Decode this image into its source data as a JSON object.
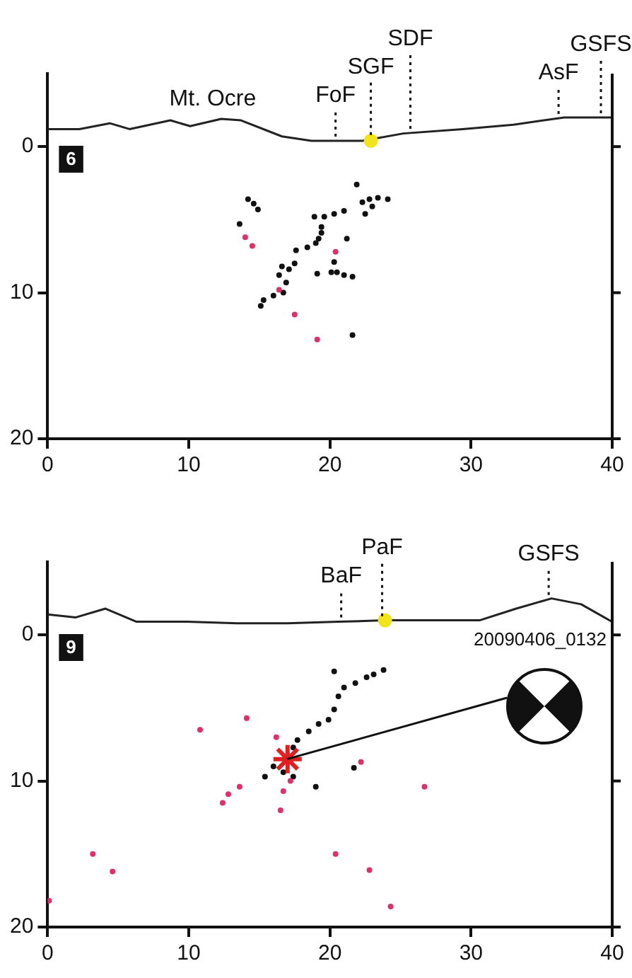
{
  "chart_data": [
    {
      "type": "scatter",
      "xlim": [
        0,
        40
      ],
      "xticks": [
        0,
        10,
        20,
        30,
        40
      ],
      "ylim": [
        20,
        -5
      ],
      "yticks": [
        0,
        10,
        20
      ],
      "grid": false,
      "legend": false,
      "marker": "circle",
      "annotations": [
        "6",
        {
          "text": "Mt. Ocre",
          "x": 11.7,
          "y": -1.9
        }
      ],
      "ref_lines": [
        {
          "axis": "x",
          "value": 20.4,
          "label": "FoF",
          "line_style": "dotted"
        },
        {
          "axis": "x",
          "value": 22.9,
          "label": "SGF",
          "line_style": "dotted"
        },
        {
          "axis": "x",
          "value": 25.7,
          "label": "SDF",
          "line_style": "dotted"
        },
        {
          "axis": "x",
          "value": 36.2,
          "label": "AsF",
          "line_style": "dotted"
        },
        {
          "axis": "x",
          "value": 39.2,
          "label": "GSFS",
          "line_style": "dotted"
        }
      ],
      "series": [
        {
          "type": "line",
          "marker": "none",
          "color": "#222222",
          "x": [
            0,
            2.25,
            4.4,
            5.8,
            8.7,
            10.1,
            12.3,
            13.7,
            16.6,
            18.7,
            22.3,
            25.2,
            29.4,
            33.0,
            36.6,
            40
          ],
          "values": [
            -1.2,
            -1.2,
            -1.6,
            -1.2,
            -1.8,
            -1.4,
            -1.9,
            -1.8,
            -0.7,
            -0.4,
            -0.4,
            -0.9,
            -1.2,
            -1.5,
            -2.0,
            -2.0
          ]
        },
        {
          "color": "#111111",
          "x": [
            21.9,
            14.2,
            14.6,
            14.9,
            13.6,
            22.3,
            22.8,
            23.4,
            24.1,
            23.0,
            22.5,
            18.9,
            19.6,
            20.3,
            21.0,
            19.4,
            19.2,
            19.0,
            18.4,
            17.6,
            21.2,
            20.3,
            20.5,
            20.1,
            21.0,
            21.6,
            19.1,
            16.6,
            17.1,
            17.5,
            16.4,
            16.9,
            16.7,
            16.0,
            15.3,
            15.1,
            19.4,
            21.6
          ],
          "values": [
            2.6,
            3.6,
            3.9,
            4.3,
            5.3,
            3.8,
            3.6,
            3.5,
            3.6,
            4.1,
            4.6,
            4.8,
            4.8,
            4.6,
            4.4,
            5.9,
            6.3,
            6.6,
            6.9,
            7.1,
            6.3,
            7.9,
            8.6,
            8.6,
            8.8,
            8.9,
            8.7,
            8.2,
            8.4,
            8.0,
            8.8,
            9.3,
            10.0,
            10.2,
            10.5,
            10.9,
            5.5,
            12.9
          ]
        },
        {
          "color": "#e0306a",
          "x": [
            14.0,
            14.5,
            20.4,
            16.4,
            17.5,
            19.1
          ],
          "values": [
            6.2,
            6.8,
            7.2,
            9.8,
            11.5,
            13.2
          ]
        },
        {
          "color": "#f2e41c",
          "x": [
            22.9
          ],
          "values": [
            -0.4
          ]
        }
      ]
    },
    {
      "type": "scatter",
      "xlim": [
        0,
        40
      ],
      "xticks": [
        0,
        10,
        20,
        30,
        40
      ],
      "ylim": [
        20,
        -5
      ],
      "yticks": [
        0,
        10,
        20
      ],
      "grid": false,
      "legend": false,
      "marker": "circle",
      "annotations": [
        "9",
        "20090406_0132"
      ],
      "ref_lines": [
        {
          "axis": "x",
          "value": 20.8,
          "label": "BaF",
          "line_style": "dotted"
        },
        {
          "axis": "x",
          "value": 23.7,
          "label": "PaF",
          "line_style": "dotted"
        },
        {
          "axis": "x",
          "value": 35.5,
          "label": "GSFS",
          "line_style": "dotted"
        }
      ],
      "series": [
        {
          "type": "line",
          "marker": "none",
          "color": "#222222",
          "x": [
            0,
            2.0,
            4.1,
            6.3,
            9.9,
            13.4,
            17.0,
            20.6,
            23.9,
            27.8,
            30.6,
            33.2,
            35.7,
            37.8,
            40
          ],
          "values": [
            -1.4,
            -1.2,
            -1.8,
            -0.9,
            -0.9,
            -0.8,
            -0.8,
            -0.9,
            -1.0,
            -1.0,
            -1.0,
            -1.8,
            -2.5,
            -2.1,
            -0.9
          ]
        },
        {
          "color": "#111111",
          "x": [
            20.3,
            21.0,
            21.8,
            22.6,
            23.1,
            23.8,
            20.6,
            20.3,
            19.9,
            19.2,
            18.5,
            17.7,
            17.4,
            16.0,
            15.4,
            16.7,
            17.4,
            19.0,
            21.7
          ],
          "values": [
            2.5,
            3.6,
            3.3,
            2.9,
            2.7,
            2.4,
            4.2,
            5.1,
            5.8,
            6.1,
            6.6,
            7.2,
            7.7,
            9.0,
            9.7,
            9.4,
            9.7,
            10.4,
            9.1
          ]
        },
        {
          "color": "#e0306a",
          "x": [
            10.8,
            14.1,
            16.2,
            17.2,
            16.7,
            13.6,
            12.8,
            12.4,
            16.5,
            22.2,
            26.7,
            3.2,
            4.6,
            0.1,
            20.4,
            22.8,
            24.3
          ],
          "values": [
            6.5,
            5.7,
            7.0,
            10.0,
            10.7,
            10.4,
            10.9,
            11.5,
            12.0,
            8.7,
            10.4,
            15.0,
            16.2,
            18.2,
            15.0,
            16.1,
            18.6
          ]
        },
        {
          "color": "#f2e41c",
          "x": [
            23.9
          ],
          "values": [
            -1.0
          ]
        },
        {
          "color": "#e02020",
          "marker": "cross",
          "x": [
            17.0
          ],
          "values": [
            8.5
          ]
        }
      ]
    }
  ]
}
